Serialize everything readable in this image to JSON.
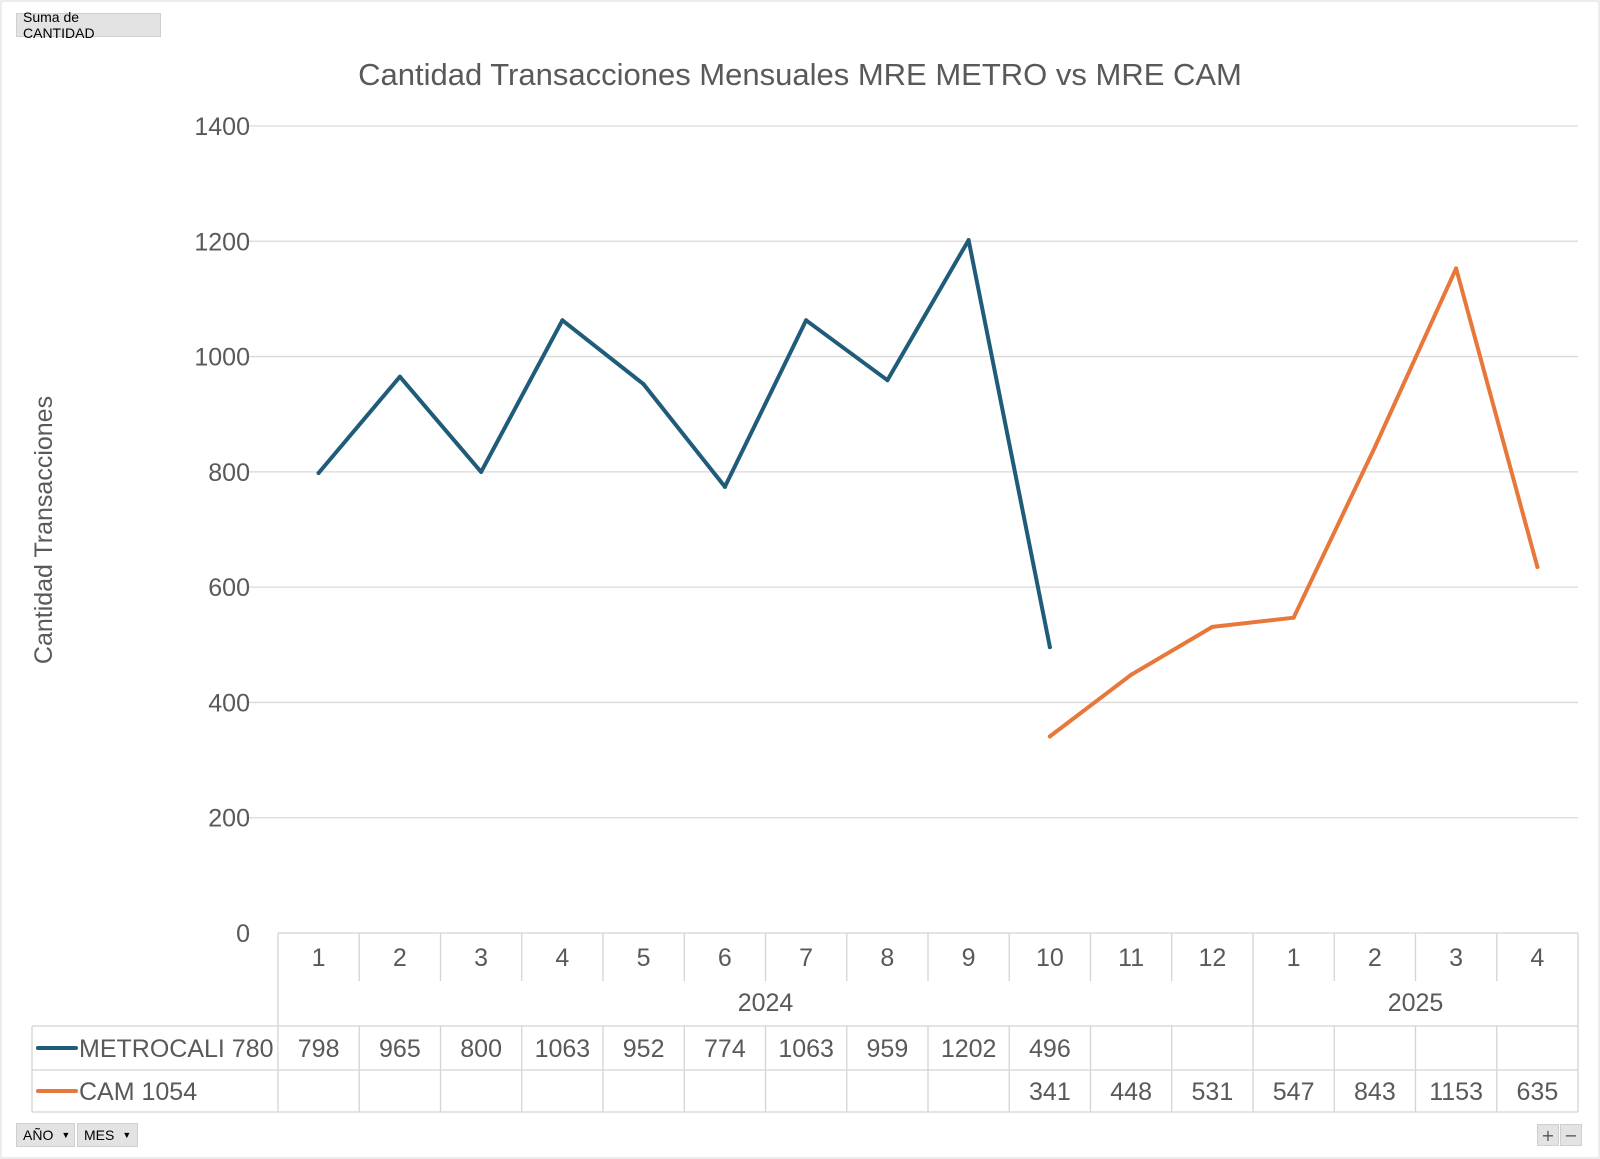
{
  "field_buttons": {
    "value_field": "Suma de CANTIDAD",
    "year_field": "AÑO",
    "month_field": "MES"
  },
  "zoom": {
    "plus": "+",
    "minus": "−"
  },
  "chart_data": {
    "type": "line",
    "title": "Cantidad Transacciones Mensuales MRE METRO vs MRE CAM",
    "ylabel": "Cantidad Transacciones",
    "ylim": [
      0,
      1400
    ],
    "yticks": [
      "0",
      "200",
      "400",
      "600",
      "800",
      "1000",
      "1200",
      "1400"
    ],
    "grid": true,
    "categories": [
      "1",
      "2",
      "3",
      "4",
      "5",
      "6",
      "7",
      "8",
      "9",
      "10",
      "11",
      "12",
      "1",
      "2",
      "3",
      "4"
    ],
    "groups": [
      {
        "label": "2024",
        "start": 0,
        "end": 11
      },
      {
        "label": "2025",
        "start": 12,
        "end": 15
      }
    ],
    "series": [
      {
        "name": "METROCALI 780",
        "color": "#1f5c7a",
        "values": [
          798,
          965,
          800,
          1063,
          952,
          774,
          1063,
          959,
          1202,
          496,
          null,
          null,
          null,
          null,
          null,
          null
        ]
      },
      {
        "name": "CAM 1054",
        "color": "#e8773a",
        "values": [
          null,
          null,
          null,
          null,
          null,
          null,
          null,
          null,
          null,
          341,
          448,
          531,
          547,
          843,
          1153,
          635
        ]
      }
    ]
  }
}
